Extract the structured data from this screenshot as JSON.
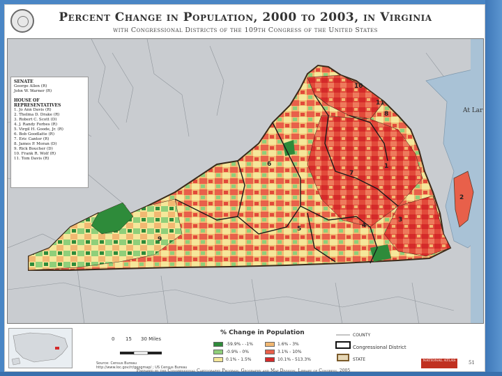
{
  "header": {
    "title": "Percent Change in Population, 2000 to 2003, in Virginia",
    "subtitle": "with Congressional Districts of the 109th Congress of the United States"
  },
  "representatives_panel": {
    "senate_header": "SENATE",
    "senators": [
      "George Allen (R)",
      "John W. Warner (R)"
    ],
    "house_header_1": "HOUSE OF",
    "house_header_2": "REPRESENTATIVES",
    "representatives": [
      "1. Jo Ann Davis (R)",
      "2. Thelma D. Drake (R)",
      "3. Robert C. Scott (D)",
      "4. J. Randy Forbes (R)",
      "5. Virgil H. Goode, Jr. (R)",
      "6. Bob Goodlatte (R)",
      "7. Eric Cantor (R)",
      "8. James P. Moran (D)",
      "9. Rick Boucher (D)",
      "10. Frank R. Wolf (R)",
      "11. Tom Davis (R)"
    ]
  },
  "map_labels": {
    "neighbor_label": "At Larg",
    "district_numbers": [
      "10",
      "11",
      "8",
      "1",
      "7",
      "6",
      "5",
      "4",
      "3",
      "2",
      "9"
    ]
  },
  "legend": {
    "title": "% Change in Population",
    "items": [
      {
        "label": "-59.9% - -1%",
        "color": "#2e8b3a"
      },
      {
        "label": "1.6% - 3%",
        "color": "#f2b872"
      },
      {
        "label": "-0.9% - 0%",
        "color": "#8fcf7a"
      },
      {
        "label": "3.1% - 10%",
        "color": "#e8604a"
      },
      {
        "label": "0.1% - 1.5%",
        "color": "#f5e79a"
      },
      {
        "label": "10.1% - 513.3%",
        "color": "#d42a2a"
      }
    ],
    "county_label": "COUNTY",
    "district_label": "Congressional District",
    "state_label": "STATE"
  },
  "scale": {
    "ticks": [
      "0",
      "15",
      "30 Miles"
    ]
  },
  "footer": {
    "source_1": "Source: Census Bureau",
    "source_2": "http://www.loc.gov/rr/geogmap/ ; US Census Bureau",
    "credit": "Prepared by the Congressional Cartography Program, Geography and Map Division, Library of Congress, 2005",
    "logo_text": "NATIONAL ATLAS",
    "page_number": "51"
  },
  "colors": {
    "background": "#4a86c5",
    "red_high": "#d42a2a",
    "red_mid": "#e8604a",
    "orange": "#f2b872",
    "yellow": "#f5e79a",
    "light_green": "#8fcf7a",
    "dark_green": "#2e8b3a",
    "neighbor_gray": "#c9ccd0",
    "water": "#a9c2d6"
  }
}
